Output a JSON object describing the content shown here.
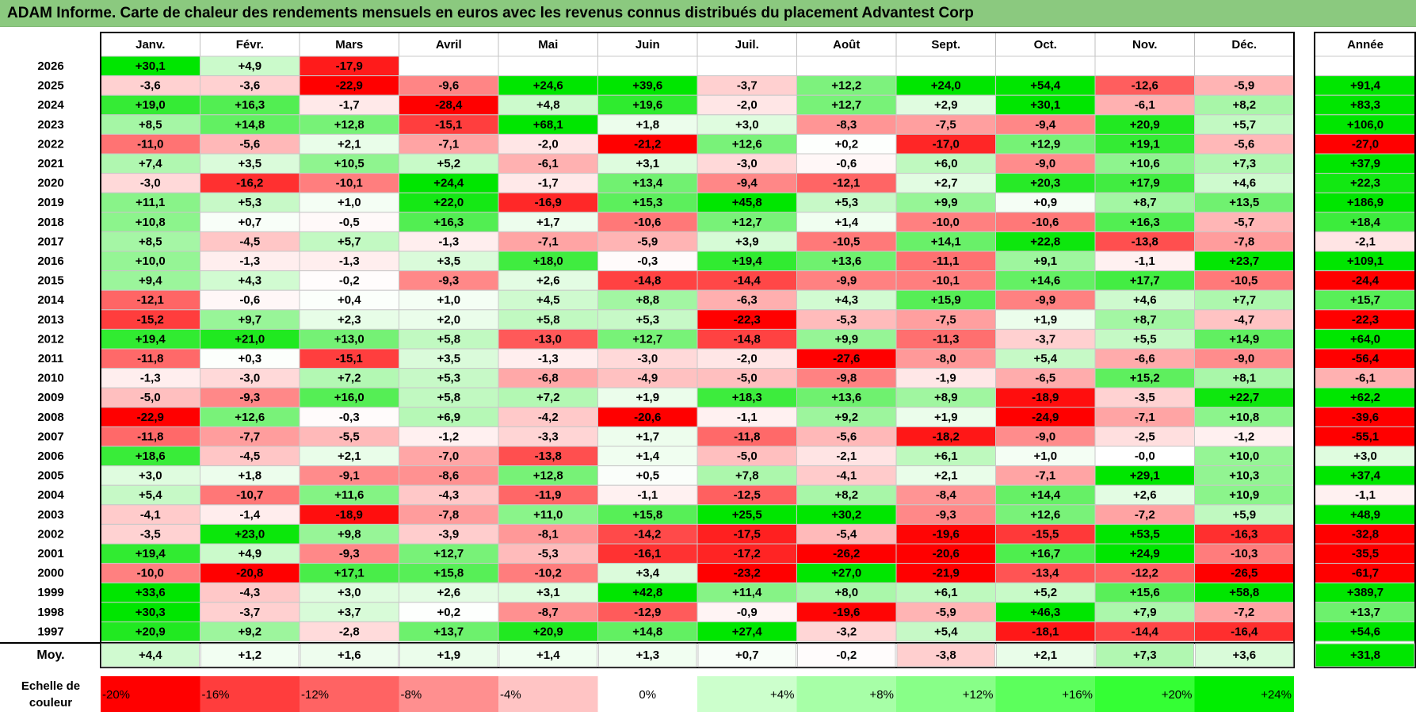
{
  "title": "ADAM Informe. Carte de chaleur des rendements mensuels en euros avec les revenus connus distribués du placement Advantest Corp",
  "chart_data": {
    "type": "heatmap",
    "months": [
      "Janv.",
      "Févr.",
      "Mars",
      "Avril",
      "Mai",
      "Juin",
      "Juil.",
      "Août",
      "Sept.",
      "Oct.",
      "Nov.",
      "Déc."
    ],
    "year_header": "Année",
    "rows": [
      {
        "year": "2026",
        "values": [
          "+30,1",
          "+4,9",
          "-17,9",
          "",
          "",
          "",
          "",
          "",
          "",
          "",
          "",
          ""
        ],
        "annual": ""
      },
      {
        "year": "2025",
        "values": [
          "-3,6",
          "-3,6",
          "-22,9",
          "-9,6",
          "+24,6",
          "+39,6",
          "-3,7",
          "+12,2",
          "+24,0",
          "+54,4",
          "-12,6",
          "-5,9"
        ],
        "annual": "+91,4"
      },
      {
        "year": "2024",
        "values": [
          "+19,0",
          "+16,3",
          "-1,7",
          "-28,4",
          "+4,8",
          "+19,6",
          "-2,0",
          "+12,7",
          "+2,9",
          "+30,1",
          "-6,1",
          "+8,2"
        ],
        "annual": "+83,3"
      },
      {
        "year": "2023",
        "values": [
          "+8,5",
          "+14,8",
          "+12,8",
          "-15,1",
          "+68,1",
          "+1,8",
          "+3,0",
          "-8,3",
          "-7,5",
          "-9,4",
          "+20,9",
          "+5,7"
        ],
        "annual": "+106,0"
      },
      {
        "year": "2022",
        "values": [
          "-11,0",
          "-5,6",
          "+2,1",
          "-7,1",
          "-2,0",
          "-21,2",
          "+12,6",
          "+0,2",
          "-17,0",
          "+12,9",
          "+19,1",
          "-5,6"
        ],
        "annual": "-27,0"
      },
      {
        "year": "2021",
        "values": [
          "+7,4",
          "+3,5",
          "+10,5",
          "+5,2",
          "-6,1",
          "+3,1",
          "-3,0",
          "-0,6",
          "+6,0",
          "-9,0",
          "+10,6",
          "+7,3"
        ],
        "annual": "+37,9"
      },
      {
        "year": "2020",
        "values": [
          "-3,0",
          "-16,2",
          "-10,1",
          "+24,4",
          "-1,7",
          "+13,4",
          "-9,4",
          "-12,1",
          "+2,7",
          "+20,3",
          "+17,9",
          "+4,6"
        ],
        "annual": "+22,3"
      },
      {
        "year": "2019",
        "values": [
          "+11,1",
          "+5,3",
          "+1,0",
          "+22,0",
          "-16,9",
          "+15,3",
          "+45,8",
          "+5,3",
          "+9,9",
          "+0,9",
          "+8,7",
          "+13,5"
        ],
        "annual": "+186,9"
      },
      {
        "year": "2018",
        "values": [
          "+10,8",
          "+0,7",
          "-0,5",
          "+16,3",
          "+1,7",
          "-10,6",
          "+12,7",
          "+1,4",
          "-10,0",
          "-10,6",
          "+16,3",
          "-5,7"
        ],
        "annual": "+18,4"
      },
      {
        "year": "2017",
        "values": [
          "+8,5",
          "-4,5",
          "+5,7",
          "-1,3",
          "-7,1",
          "-5,9",
          "+3,9",
          "-10,5",
          "+14,1",
          "+22,8",
          "-13,8",
          "-7,8"
        ],
        "annual": "-2,1"
      },
      {
        "year": "2016",
        "values": [
          "+10,0",
          "-1,3",
          "-1,3",
          "+3,5",
          "+18,0",
          "-0,3",
          "+19,4",
          "+13,6",
          "-11,1",
          "+9,1",
          "-1,1",
          "+23,7"
        ],
        "annual": "+109,1"
      },
      {
        "year": "2015",
        "values": [
          "+9,4",
          "+4,3",
          "-0,2",
          "-9,3",
          "+2,6",
          "-14,8",
          "-14,4",
          "-9,9",
          "-10,1",
          "+14,6",
          "+17,7",
          "-10,5"
        ],
        "annual": "-24,4"
      },
      {
        "year": "2014",
        "values": [
          "-12,1",
          "-0,6",
          "+0,4",
          "+1,0",
          "+4,5",
          "+8,8",
          "-6,3",
          "+4,3",
          "+15,9",
          "-9,9",
          "+4,6",
          "+7,7"
        ],
        "annual": "+15,7"
      },
      {
        "year": "2013",
        "values": [
          "-15,2",
          "+9,7",
          "+2,3",
          "+2,0",
          "+5,8",
          "+5,3",
          "-22,3",
          "-5,3",
          "-7,5",
          "+1,9",
          "+8,7",
          "-4,7"
        ],
        "annual": "-22,3"
      },
      {
        "year": "2012",
        "values": [
          "+19,4",
          "+21,0",
          "+13,0",
          "+5,8",
          "-13,0",
          "+12,7",
          "-14,8",
          "+9,9",
          "-11,3",
          "-3,7",
          "+5,5",
          "+14,9"
        ],
        "annual": "+64,0"
      },
      {
        "year": "2011",
        "values": [
          "-11,8",
          "+0,3",
          "-15,1",
          "+3,5",
          "-1,3",
          "-3,0",
          "-2,0",
          "-27,6",
          "-8,0",
          "+5,4",
          "-6,6",
          "-9,0"
        ],
        "annual": "-56,4"
      },
      {
        "year": "2010",
        "values": [
          "-1,3",
          "-3,0",
          "+7,2",
          "+5,3",
          "-6,8",
          "-4,9",
          "-5,0",
          "-9,8",
          "-1,9",
          "-6,5",
          "+15,2",
          "+8,1"
        ],
        "annual": "-6,1"
      },
      {
        "year": "2009",
        "values": [
          "-5,0",
          "-9,3",
          "+16,0",
          "+5,8",
          "+7,2",
          "+1,9",
          "+18,3",
          "+13,6",
          "+8,9",
          "-18,9",
          "-3,5",
          "+22,7"
        ],
        "annual": "+62,2"
      },
      {
        "year": "2008",
        "values": [
          "-22,9",
          "+12,6",
          "-0,3",
          "+6,9",
          "-4,2",
          "-20,6",
          "-1,1",
          "+9,2",
          "+1,9",
          "-24,9",
          "-7,1",
          "+10,8"
        ],
        "annual": "-39,6"
      },
      {
        "year": "2007",
        "values": [
          "-11,8",
          "-7,7",
          "-5,5",
          "-1,2",
          "-3,3",
          "+1,7",
          "-11,8",
          "-5,6",
          "-18,2",
          "-9,0",
          "-2,5",
          "-1,2"
        ],
        "annual": "-55,1"
      },
      {
        "year": "2006",
        "values": [
          "+18,6",
          "-4,5",
          "+2,1",
          "-7,0",
          "-13,8",
          "+1,4",
          "-5,0",
          "-2,1",
          "+6,1",
          "+1,0",
          "-0,0",
          "+10,0"
        ],
        "annual": "+3,0"
      },
      {
        "year": "2005",
        "values": [
          "+3,0",
          "+1,8",
          "-9,1",
          "-8,6",
          "+12,8",
          "+0,5",
          "+7,8",
          "-4,1",
          "+2,1",
          "-7,1",
          "+29,1",
          "+10,3"
        ],
        "annual": "+37,4"
      },
      {
        "year": "2004",
        "values": [
          "+5,4",
          "-10,7",
          "+11,6",
          "-4,3",
          "-11,9",
          "-1,1",
          "-12,5",
          "+8,2",
          "-8,4",
          "+14,4",
          "+2,6",
          "+10,9"
        ],
        "annual": "-1,1"
      },
      {
        "year": "2003",
        "values": [
          "-4,1",
          "-1,4",
          "-18,9",
          "-7,8",
          "+11,0",
          "+15,8",
          "+25,5",
          "+30,2",
          "-9,3",
          "+12,6",
          "-7,2",
          "+5,9"
        ],
        "annual": "+48,9"
      },
      {
        "year": "2002",
        "values": [
          "-3,5",
          "+23,0",
          "+9,8",
          "-3,9",
          "-8,1",
          "-14,2",
          "-17,5",
          "-5,4",
          "-19,6",
          "-15,5",
          "+53,5",
          "-16,3"
        ],
        "annual": "-32,8"
      },
      {
        "year": "2001",
        "values": [
          "+19,4",
          "+4,9",
          "-9,3",
          "+12,7",
          "-5,3",
          "-16,1",
          "-17,2",
          "-26,2",
          "-20,6",
          "+16,7",
          "+24,9",
          "-10,3"
        ],
        "annual": "-35,5"
      },
      {
        "year": "2000",
        "values": [
          "-10,0",
          "-20,8",
          "+17,1",
          "+15,8",
          "-10,2",
          "+3,4",
          "-23,2",
          "+27,0",
          "-21,9",
          "-13,4",
          "-12,2",
          "-26,5"
        ],
        "annual": "-61,7"
      },
      {
        "year": "1999",
        "values": [
          "+33,6",
          "-4,3",
          "+3,0",
          "+2,6",
          "+3,1",
          "+42,8",
          "+11,4",
          "+8,0",
          "+6,1",
          "+5,2",
          "+15,6",
          "+58,8"
        ],
        "annual": "+389,7"
      },
      {
        "year": "1998",
        "values": [
          "+30,3",
          "-3,7",
          "+3,7",
          "+0,2",
          "-8,7",
          "-12,9",
          "-0,9",
          "-19,6",
          "-5,9",
          "+46,3",
          "+7,9",
          "-7,2"
        ],
        "annual": "+13,7"
      },
      {
        "year": "1997",
        "values": [
          "+20,9",
          "+9,2",
          "-2,8",
          "+13,7",
          "+20,9",
          "+14,8",
          "+27,4",
          "-3,2",
          "+5,4",
          "-18,1",
          "-14,4",
          "-16,4"
        ],
        "annual": "+54,6"
      }
    ],
    "average": {
      "label": "Moy.",
      "values": [
        "+4,4",
        "+1,2",
        "+1,6",
        "+1,9",
        "+1,4",
        "+1,3",
        "+0,7",
        "-0,2",
        "-3,8",
        "+2,1",
        "+7,3",
        "+3,6"
      ],
      "annual": "+31,8"
    },
    "scale": {
      "label_line1": "Echelle de",
      "label_line2": "couleur",
      "stops": [
        "-20%",
        "-16%",
        "-12%",
        "-8%",
        "-4%",
        "0%",
        "+4%",
        "+8%",
        "+12%",
        "+16%",
        "+20%",
        "+24%"
      ],
      "colors": [
        "#ff0000",
        "#ff3d3d",
        "#ff6363",
        "#ff8f8f",
        "#ffc4c4",
        "#ffffff",
        "#ccffcc",
        "#a7ffa7",
        "#88ff88",
        "#5cff5c",
        "#34ff34",
        "#00ee00"
      ]
    },
    "colors": {
      "positive_max": "#00e600",
      "negative_max": "#ff0000",
      "neutral": "#ffffff",
      "title_bar": "#8bc97f"
    }
  }
}
